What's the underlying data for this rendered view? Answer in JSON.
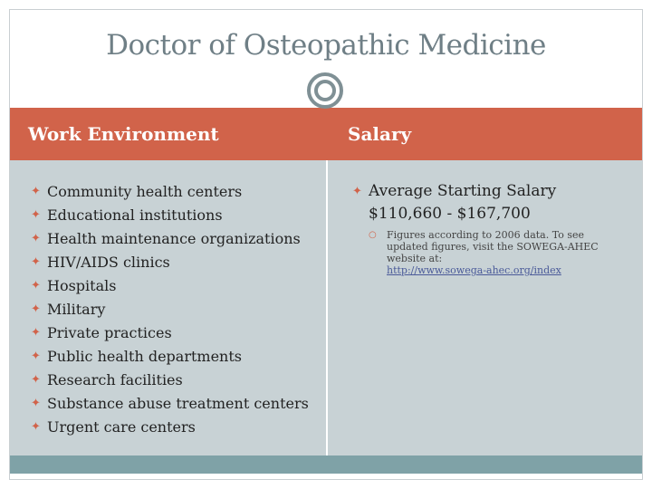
{
  "title": "Doctor of Osteopathic Medicine",
  "columns": {
    "left_header": "Work Environment",
    "right_header": "Salary"
  },
  "work_environments": [
    "Community health centers",
    "Educational institutions",
    "Health maintenance organizations",
    "HIV/AIDS clinics",
    "Hospitals",
    "Military",
    "Private practices",
    "Public health departments",
    "Research facilities",
    "Substance abuse treatment centers",
    "Urgent care centers"
  ],
  "salary": {
    "label": "Average Starting Salary",
    "range": "$110,660 - $167,700",
    "note": "Figures according to 2006 data. To see updated figures, visit the SOWEGA-AHEC website at:",
    "link": "http://www.sowega-ahec.org/index"
  },
  "colors": {
    "header": "#d1634a",
    "panel": "#c8d2d5",
    "footer": "#7fa2a7",
    "title": "#6f7f86"
  },
  "icons": {
    "bullet": "bullet-icon",
    "ornament": "circle-ornament-icon"
  }
}
